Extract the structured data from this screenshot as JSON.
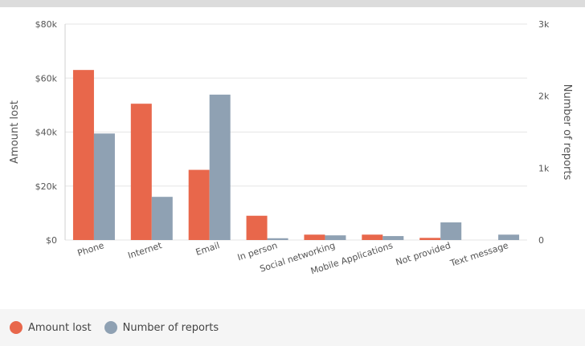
{
  "chart_data": {
    "type": "bar",
    "categories": [
      "Phone",
      "Internet",
      "Email",
      "In person",
      "Social networking",
      "Mobile Applications",
      "Not provided",
      "Text message"
    ],
    "series": [
      {
        "name": "Amount lost",
        "axis": "left",
        "color": "#e8674b",
        "values": [
          63000,
          50500,
          26000,
          9000,
          2000,
          2000,
          800,
          0
        ]
      },
      {
        "name": "Number of reports",
        "axis": "right",
        "color": "#8fa1b3",
        "values": [
          1480,
          600,
          2020,
          25,
          65,
          55,
          245,
          75
        ]
      }
    ],
    "ylabel": "Amount lost",
    "ylabel_right": "Number of reports",
    "ylim": [
      0,
      80000
    ],
    "ylim_right": [
      0,
      3000
    ],
    "yticks": [
      {
        "v": 0,
        "label": "$0"
      },
      {
        "v": 20000,
        "label": "$20k"
      },
      {
        "v": 40000,
        "label": "$40k"
      },
      {
        "v": 60000,
        "label": "$60k"
      },
      {
        "v": 80000,
        "label": "$80k"
      }
    ],
    "yticks_right": [
      {
        "v": 0,
        "label": "0"
      },
      {
        "v": 1000,
        "label": "1k"
      },
      {
        "v": 2000,
        "label": "2k"
      },
      {
        "v": 3000,
        "label": "3k"
      }
    ],
    "grid": true,
    "legend": "bottom-left"
  },
  "legend": {
    "amount_lost": "Amount lost",
    "number_of_reports": "Number of reports"
  }
}
